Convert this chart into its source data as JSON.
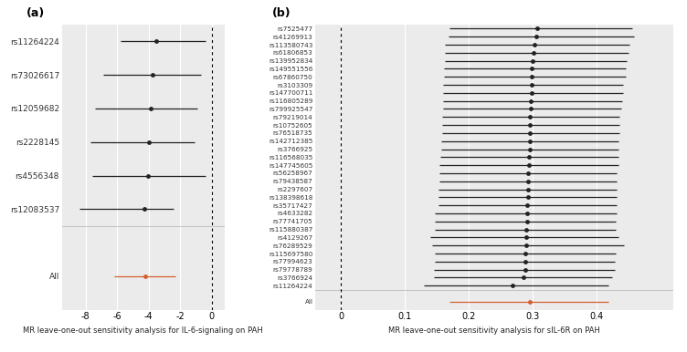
{
  "panel_a": {
    "xlabel": "MR leave-one-out sensitivity analysis for IL-6-signaling on PAH",
    "xlim": [
      -9.5,
      0.8
    ],
    "xticks": [
      -8,
      -6,
      -4,
      -2,
      0
    ],
    "vline": 0,
    "labels": [
      "rs11264224",
      "rs73026617",
      "rs12059682",
      "rs2228145",
      "rs4556348",
      "rs12083537",
      "",
      "All"
    ],
    "estimates": [
      -3.55,
      -3.75,
      -3.85,
      -4.0,
      -4.05,
      -4.3,
      null,
      -4.2
    ],
    "ci_low": [
      -5.8,
      -6.9,
      -7.4,
      -7.7,
      -7.6,
      -8.4,
      null,
      -6.2
    ],
    "ci_high": [
      -0.4,
      -0.7,
      -0.9,
      -1.1,
      -0.4,
      -2.4,
      null,
      -2.3
    ],
    "colors": [
      "#222222",
      "#222222",
      "#222222",
      "#222222",
      "#222222",
      "#222222",
      null,
      "#d45f30"
    ]
  },
  "panel_b": {
    "xlabel": "MR leave-one-out sensitivity analysis for sIL-6R on PAH",
    "xlim": [
      -0.04,
      0.52
    ],
    "xticks": [
      0.0,
      0.1,
      0.2,
      0.3,
      0.4
    ],
    "vline": 0,
    "labels": [
      "rs7525477",
      "rs41269913",
      "rs113580743",
      "rs61806853",
      "rs139952834",
      "rs149551556",
      "rs67860750",
      "rs3103309",
      "rs147700711",
      "rs116805289",
      "rs799925547",
      "rs79219014",
      "rs10752605",
      "rs76518735",
      "rs142712385",
      "rs3766925",
      "rs116568035",
      "rs147745605",
      "rs56258967",
      "rs79438587",
      "rs2297607",
      "rs138398618",
      "rs35717427",
      "rs4633282",
      "rs77741705",
      "rs115880387",
      "rs4129267",
      "rs76289529",
      "rs115697580",
      "rs77994623",
      "rs79778789",
      "rs3766924",
      "rs11264224",
      "",
      "All"
    ],
    "estimates": [
      0.307,
      0.306,
      0.302,
      0.301,
      0.3,
      0.299,
      0.299,
      0.298,
      0.298,
      0.297,
      0.297,
      0.296,
      0.296,
      0.296,
      0.295,
      0.295,
      0.294,
      0.294,
      0.293,
      0.293,
      0.292,
      0.292,
      0.291,
      0.291,
      0.291,
      0.29,
      0.29,
      0.29,
      0.289,
      0.289,
      0.288,
      0.286,
      0.268,
      null,
      0.295
    ],
    "ci_low": [
      0.17,
      0.168,
      0.163,
      0.162,
      0.162,
      0.161,
      0.161,
      0.16,
      0.16,
      0.16,
      0.16,
      0.158,
      0.158,
      0.158,
      0.157,
      0.157,
      0.156,
      0.154,
      0.154,
      0.154,
      0.152,
      0.152,
      0.152,
      0.147,
      0.147,
      0.147,
      0.14,
      0.143,
      0.147,
      0.147,
      0.146,
      0.146,
      0.13,
      null,
      0.17
    ],
    "ci_high": [
      0.456,
      0.458,
      0.452,
      0.45,
      0.447,
      0.446,
      0.446,
      0.442,
      0.442,
      0.44,
      0.438,
      0.436,
      0.436,
      0.436,
      0.434,
      0.434,
      0.434,
      0.434,
      0.432,
      0.432,
      0.432,
      0.432,
      0.432,
      0.432,
      0.43,
      0.43,
      0.434,
      0.443,
      0.43,
      0.428,
      0.428,
      0.424,
      0.418,
      null,
      0.418
    ],
    "colors": [
      "#222222",
      "#222222",
      "#222222",
      "#222222",
      "#222222",
      "#222222",
      "#222222",
      "#222222",
      "#222222",
      "#222222",
      "#222222",
      "#222222",
      "#222222",
      "#222222",
      "#222222",
      "#222222",
      "#222222",
      "#222222",
      "#222222",
      "#222222",
      "#222222",
      "#222222",
      "#222222",
      "#222222",
      "#222222",
      "#222222",
      "#222222",
      "#222222",
      "#222222",
      "#222222",
      "#222222",
      "#222222",
      "#222222",
      null,
      "#d45f30"
    ]
  },
  "bg_color": "#ebebeb",
  "grid_color": "#ffffff",
  "dot_size": 3.5,
  "line_width": 0.9
}
